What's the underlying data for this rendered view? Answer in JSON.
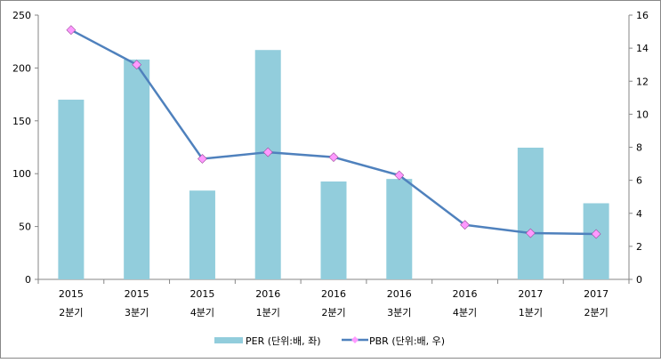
{
  "chart_data": {
    "type": "bar+line",
    "categories": [
      [
        "2015",
        "2분기"
      ],
      [
        "2015",
        "3분기"
      ],
      [
        "2015",
        "4분기"
      ],
      [
        "2016",
        "1분기"
      ],
      [
        "2016",
        "2분기"
      ],
      [
        "2016",
        "3분기"
      ],
      [
        "2016",
        "4분기"
      ],
      [
        "2017",
        "1분기"
      ],
      [
        "2017",
        "2분기"
      ]
    ],
    "series": [
      {
        "name": "PER (단위:배, 좌)",
        "type": "bar",
        "axis": "left",
        "color": "#92CDDC",
        "values": [
          170,
          208,
          84,
          217,
          92.6,
          95,
          null,
          124.6,
          72
        ]
      },
      {
        "name": "PBR (단위:배, 우)",
        "type": "line",
        "axis": "right",
        "color": "#4F81BD",
        "marker_color": "#FF99FF",
        "values": [
          15.1,
          13.0,
          7.3,
          7.7,
          7.4,
          6.3,
          3.3,
          2.8,
          2.75
        ]
      }
    ],
    "left_axis": {
      "min": 0,
      "max": 250,
      "ticks": [
        0,
        50,
        100,
        150,
        200,
        250
      ]
    },
    "right_axis": {
      "min": 0,
      "max": 16,
      "ticks": [
        0,
        2,
        4,
        6,
        8,
        10,
        12,
        14,
        16
      ]
    },
    "legend": "bottom",
    "grid": false
  }
}
